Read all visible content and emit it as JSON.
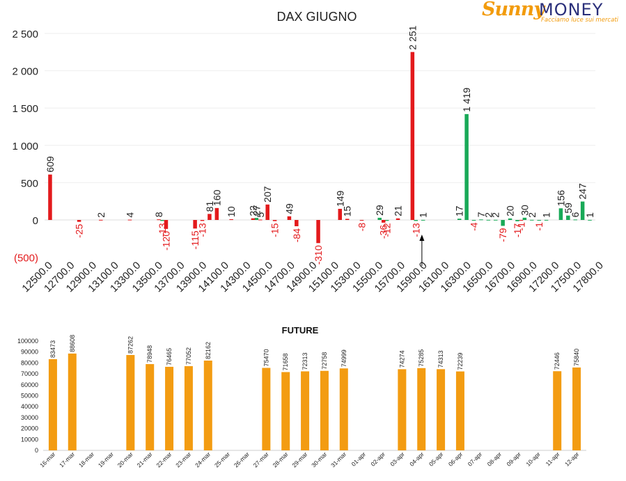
{
  "logo": {
    "brand_part1": "Sunny",
    "brand_part2": "MONEY",
    "tagline": "Facciamo luce sui mercati"
  },
  "colors": {
    "call": "#e31a1c",
    "put": "#18a957",
    "future_bar": "#f39c12",
    "negative_label": "#e31a1c",
    "text": "#222222"
  },
  "chart_data": [
    {
      "type": "bar",
      "title": "DAX GIUGNO",
      "ylim": [
        -500,
        2500
      ],
      "y_ticks": [
        "(500)",
        "0",
        "500",
        "1 000",
        "1 500",
        "2 000",
        "2 500"
      ],
      "y_tick_values": [
        -500,
        0,
        500,
        1000,
        1500,
        2000,
        2500
      ],
      "x_tick_labels": [
        "12500.0",
        "12700.0",
        "12900.0",
        "13100.0",
        "13300.0",
        "13500.0",
        "13700.0",
        "13900.0",
        "14100.0",
        "14300.0",
        "14500.0",
        "14700.0",
        "14900.0",
        "15100.0",
        "15300.0",
        "15500.0",
        "15700.0",
        "15900.0",
        "16100.0",
        "16300.0",
        "16500.0",
        "16700.0",
        "16900.0",
        "17200.0",
        "17500.0",
        "17800.0"
      ],
      "marker_label_index": 17,
      "series": [
        {
          "color_key": "put",
          "values": [
            0,
            0,
            0,
            0,
            0,
            0,
            0,
            0,
            0,
            0,
            0,
            0,
            0,
            0,
            0,
            0,
            -13,
            0,
            0,
            0,
            0,
            0,
            0,
            0,
            0,
            0,
            0,
            0,
            0,
            27,
            0,
            0,
            0,
            0,
            0,
            0,
            0,
            0,
            0,
            0,
            0,
            0,
            0,
            0,
            0,
            0,
            29,
            -12,
            0,
            0,
            0,
            -13,
            1,
            0,
            0,
            0,
            0,
            17,
            1419,
            -4,
            7,
            2,
            2,
            -79,
            20,
            -17,
            30,
            2,
            -1,
            1,
            0,
            156,
            59,
            6,
            247,
            1
          ]
        },
        {
          "color_key": "call",
          "values": [
            609,
            0,
            0,
            0,
            -25,
            0,
            0,
            2,
            0,
            0,
            0,
            4,
            0,
            0,
            0,
            8,
            -120,
            0,
            0,
            0,
            -115,
            -13,
            81,
            160,
            0,
            10,
            0,
            0,
            22,
            5,
            207,
            -15,
            0,
            49,
            -84,
            0,
            0,
            -310,
            0,
            0,
            149,
            15,
            0,
            -8,
            0,
            0,
            -36,
            0,
            21,
            0,
            2251,
            0,
            0,
            0,
            0,
            0,
            0,
            0,
            0,
            0,
            0,
            0,
            0,
            0,
            0,
            -1,
            0,
            0,
            0,
            0,
            0,
            0,
            0,
            0,
            0,
            0
          ]
        }
      ]
    },
    {
      "type": "bar",
      "title": "FUTURE",
      "ylim": [
        0,
        100000
      ],
      "y_ticks": [
        "0",
        "10000",
        "20000",
        "30000",
        "40000",
        "50000",
        "60000",
        "70000",
        "80000",
        "90000",
        "100000"
      ],
      "categories": [
        "16-mar",
        "17-mar",
        "18-mar",
        "19-mar",
        "20-mar",
        "21-mar",
        "22-mar",
        "23-mar",
        "24-mar",
        "25-mar",
        "26-mar",
        "27-mar",
        "28-mar",
        "29-mar",
        "30-mar",
        "31-mar",
        "01-apr",
        "02-apr",
        "03-apr",
        "04-apr",
        "05-apr",
        "06-apr",
        "07-apr",
        "08-apr",
        "09-apr",
        "10-apr",
        "11-apr",
        "12-apr"
      ],
      "values": [
        83473,
        88608,
        null,
        null,
        87262,
        78948,
        76465,
        77052,
        82162,
        null,
        null,
        75470,
        71658,
        72313,
        72758,
        74999,
        null,
        null,
        74274,
        75285,
        74313,
        72239,
        null,
        null,
        null,
        null,
        72446,
        75840
      ]
    }
  ]
}
